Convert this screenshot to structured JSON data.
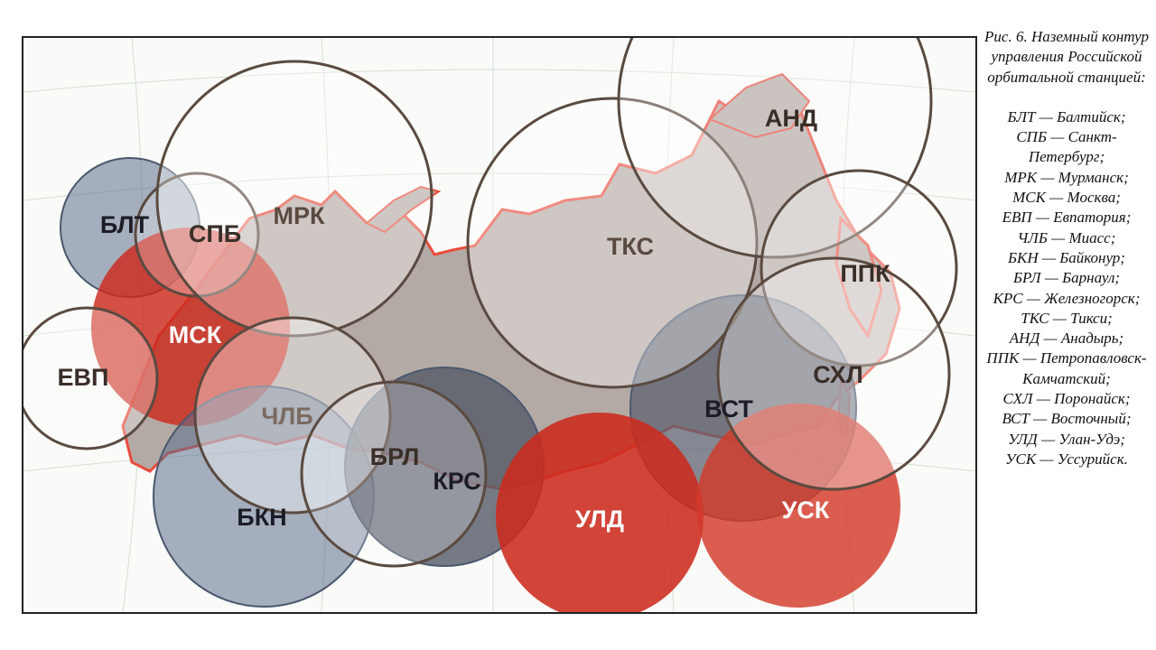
{
  "caption": {
    "title": "Рис. 6. Наземный контур управления Российской орбитальной станцией:",
    "legend": [
      "БЛТ — Балтийск;",
      "СПБ — Санкт-Петербург;",
      "МРК — Мурманск;",
      "МСК — Москва;",
      "ЕВП — Евпатория;",
      "ЧЛБ — Миасс;",
      "БКН — Байконур;",
      "БРЛ — Барнаул;",
      "КРС — Железногорск;",
      "ТКС — Тикси;",
      "АНД — Анадырь;",
      "ППК — Петропавловск-Камчатский;",
      "СХЛ — Поронайск;",
      "ВСТ — Восточный;",
      "УЛД — Улан-Удэ;",
      "УСК — Уссурийск."
    ]
  },
  "map": {
    "colors": {
      "land": "#b4aaa5",
      "coast": "#e84c3d",
      "blue_zone": "#5d6f8c",
      "red_zone": "#cc2a1c",
      "outline_zone": "#5a4a40",
      "dark_label": "#1c1c26",
      "brown_label": "#4a3a30",
      "white_label": "#ffffff"
    },
    "stations": [
      {
        "code": "БЛТ",
        "style": "blue"
      },
      {
        "code": "СПБ",
        "style": "outline"
      },
      {
        "code": "МРК",
        "style": "outline"
      },
      {
        "code": "МСК",
        "style": "red"
      },
      {
        "code": "ЕВП",
        "style": "outline"
      },
      {
        "code": "ЧЛБ",
        "style": "outline"
      },
      {
        "code": "БКН",
        "style": "blue"
      },
      {
        "code": "БРЛ",
        "style": "outline"
      },
      {
        "code": "КРС",
        "style": "dark"
      },
      {
        "code": "ТКС",
        "style": "outline"
      },
      {
        "code": "АНД",
        "style": "outline"
      },
      {
        "code": "ППК",
        "style": "outline"
      },
      {
        "code": "СХЛ",
        "style": "outline"
      },
      {
        "code": "ВСТ",
        "style": "dark"
      },
      {
        "code": "УЛД",
        "style": "red"
      },
      {
        "code": "УСК",
        "style": "red"
      }
    ]
  }
}
